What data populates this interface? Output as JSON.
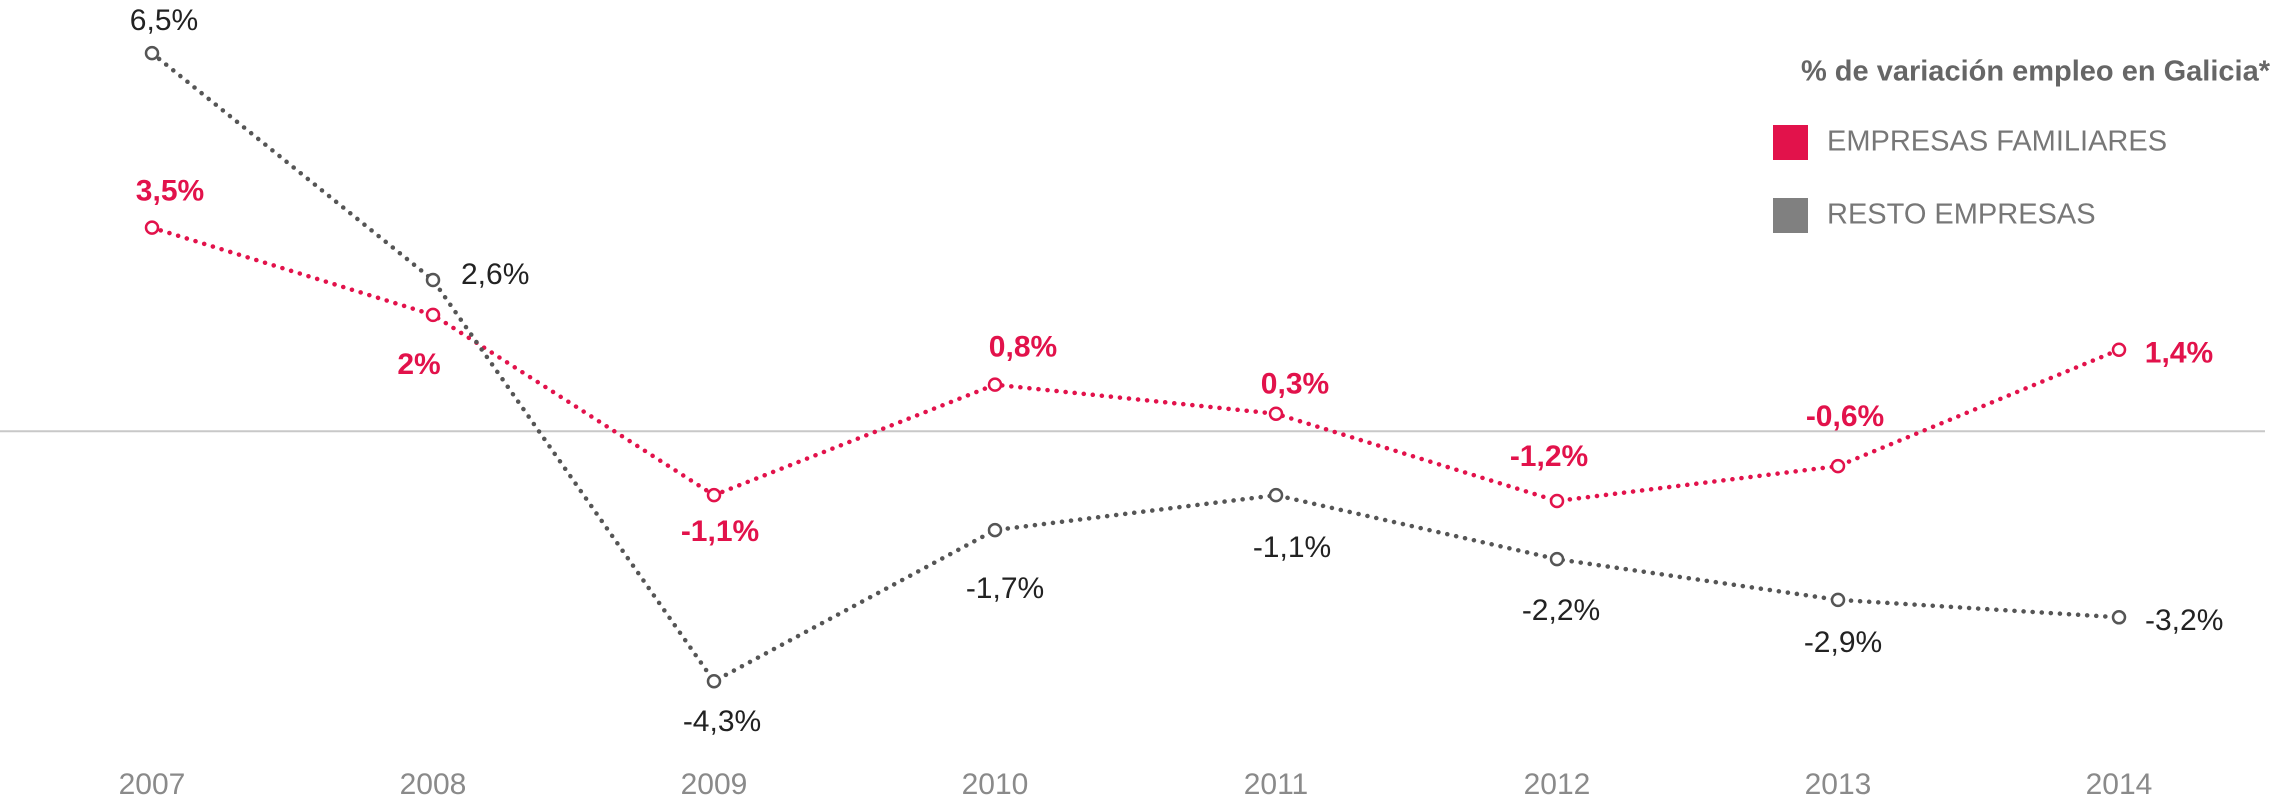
{
  "chart_data": {
    "type": "line",
    "legend_title": "% de variación empleo en Galicia*",
    "categories": [
      "2007",
      "2008",
      "2009",
      "2010",
      "2011",
      "2012",
      "2013",
      "2014"
    ],
    "series": [
      {
        "name": "EMPRESAS FAMILIARES",
        "color": "#e2124b",
        "values": [
          3.5,
          2,
          -1.1,
          0.8,
          0.3,
          -1.2,
          -0.6,
          1.4
        ],
        "value_labels": [
          "3,5%",
          "2%",
          "-1,1%",
          "0,8%",
          "0,3%",
          "-1,2%",
          "-0,6%",
          "1,4%"
        ]
      },
      {
        "name": "RESTO EMPRESAS",
        "color": "#808080",
        "values": [
          6.5,
          2.6,
          -4.3,
          -1.7,
          -1.1,
          -2.2,
          -2.9,
          -3.2
        ],
        "value_labels": [
          "6,5%",
          "2,6%",
          "-4,3%",
          "-1,7%",
          "-1,1%",
          "-2,2%",
          "-2,9%",
          "-3,2%"
        ]
      }
    ],
    "ylim": [
      -5,
      7.5
    ],
    "legend": "upper right"
  }
}
